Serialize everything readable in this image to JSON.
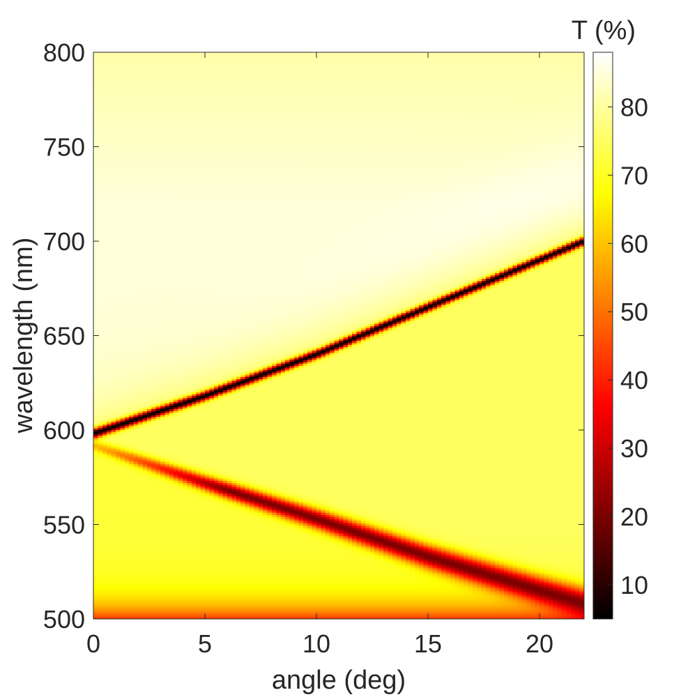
{
  "chart_data": {
    "type": "heatmap",
    "title": "",
    "xlabel": "angle (deg)",
    "ylabel": "wavelength (nm)",
    "xlim": [
      0,
      22
    ],
    "ylim": [
      500,
      800
    ],
    "x_ticks": [
      "0",
      "5",
      "10",
      "15",
      "20"
    ],
    "x_tick_values": [
      0,
      5,
      10,
      15,
      20
    ],
    "y_ticks": [
      "500",
      "550",
      "600",
      "650",
      "700",
      "750",
      "800"
    ],
    "y_tick_values": [
      500,
      550,
      600,
      650,
      700,
      750,
      800
    ],
    "colorbar": {
      "label": "T (%)",
      "range": [
        5,
        88
      ],
      "ticks": [
        "10",
        "20",
        "30",
        "40",
        "50",
        "60",
        "70",
        "80"
      ],
      "tick_values": [
        10,
        20,
        30,
        40,
        50,
        60,
        70,
        80
      ],
      "colormap": "hot"
    },
    "features": [
      {
        "name": "upper resonance",
        "angle": [
          0,
          5,
          10,
          15,
          22
        ],
        "wavelength": [
          598,
          618,
          640,
          665,
          700
        ],
        "min_T": 5
      },
      {
        "name": "lower resonance",
        "angle": [
          0,
          5,
          10,
          15,
          22
        ],
        "wavelength": [
          592,
          572,
          553,
          533,
          508
        ],
        "min_T": 20
      }
    ],
    "regions": [
      {
        "description": "above upper resonance",
        "T": 85
      },
      {
        "description": "between resonances",
        "T": 75
      },
      {
        "description": "near 500 nm",
        "T": 45
      }
    ]
  }
}
